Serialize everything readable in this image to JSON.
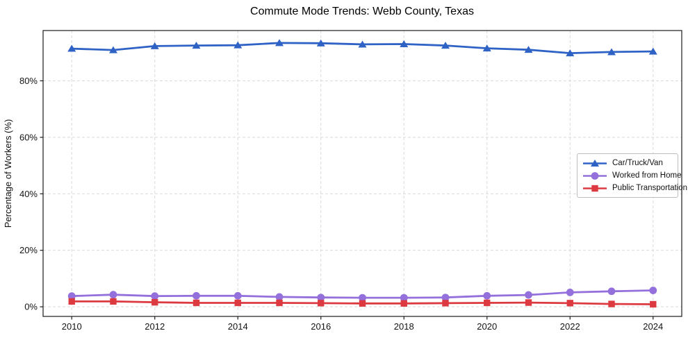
{
  "chart_data": {
    "type": "line",
    "title": "Commute Mode Trends: Webb County, Texas",
    "xlabel": "",
    "ylabel": "Percentage of Workers (%)",
    "x": [
      2010,
      2011,
      2012,
      2013,
      2014,
      2015,
      2016,
      2017,
      2018,
      2019,
      2020,
      2021,
      2022,
      2023,
      2024
    ],
    "series": [
      {
        "name": "Car/Truck/Van",
        "color": "#2f62c5",
        "marker": "triangle",
        "values": [
          91.4,
          90.9,
          92.3,
          92.5,
          92.6,
          93.4,
          93.3,
          92.9,
          93.0,
          92.5,
          91.5,
          91.0,
          89.8,
          90.2,
          90.4
        ]
      },
      {
        "name": "Worked from Home",
        "color": "#9370DB",
        "marker": "circle",
        "values": [
          3.8,
          4.3,
          3.8,
          3.9,
          3.9,
          3.5,
          3.3,
          3.2,
          3.2,
          3.3,
          3.9,
          4.2,
          5.1,
          5.5,
          5.8
        ]
      },
      {
        "name": "Public Transportation",
        "color": "#DC3A40",
        "marker": "square",
        "values": [
          1.9,
          1.9,
          1.6,
          1.4,
          1.4,
          1.4,
          1.3,
          1.2,
          1.2,
          1.3,
          1.4,
          1.5,
          1.3,
          1.0,
          0.9
        ]
      }
    ],
    "xticks": [
      2010,
      2012,
      2014,
      2016,
      2018,
      2020,
      2022,
      2024
    ],
    "yticks": [
      0,
      20,
      40,
      60,
      80
    ],
    "ytick_suffix": "%",
    "xlim": [
      2009.31,
      2024.69
    ],
    "ylim": [
      -3.4,
      97.8
    ],
    "grid": true,
    "grid_color": "#d9d9d9",
    "spine_color": "#1a1a1a",
    "legend": {
      "position": "middle-right",
      "entries": [
        "Car/Truck/Van",
        "Worked from Home",
        "Public Transportation"
      ]
    }
  }
}
